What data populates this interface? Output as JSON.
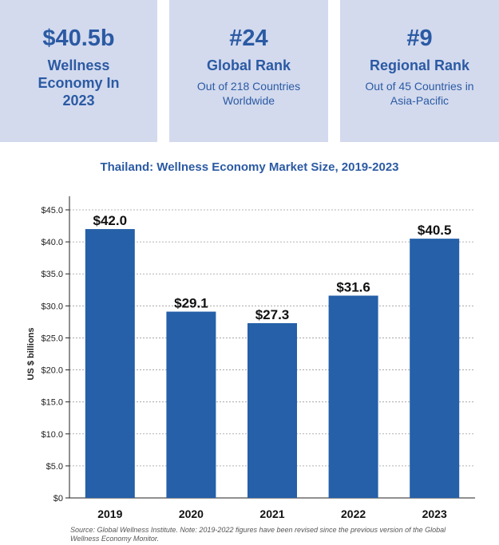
{
  "cards": [
    {
      "value": "$40.5b",
      "label": "Wellness Economy In 2023",
      "sub": ""
    },
    {
      "value": "#24",
      "label": "Global Rank",
      "sub": "Out of 218 Countries Worldwide"
    },
    {
      "value": "#9",
      "label": "Regional Rank",
      "sub": "Out of 45 Countries in Asia-Pacific"
    }
  ],
  "colors": {
    "accent": "#2b5aa3",
    "card_bg": "#d3daee",
    "bar": "#2560a8"
  },
  "chart_data": {
    "type": "bar",
    "title": "Thailand: Wellness Economy Market Size, 2019-2023",
    "xlabel": "",
    "ylabel": "US $ billions",
    "categories": [
      "2019",
      "2020",
      "2021",
      "2022",
      "2023"
    ],
    "values": [
      42.0,
      29.1,
      27.3,
      31.6,
      40.5
    ],
    "data_labels": [
      "$42.0",
      "$29.1",
      "$27.3",
      "$31.6",
      "$40.5"
    ],
    "ylim": [
      0,
      45
    ],
    "yticks": [
      0,
      5,
      10,
      15,
      20,
      25,
      30,
      35,
      40,
      45
    ],
    "ytick_labels": [
      "$0",
      "$5.0",
      "$10.0",
      "$15.0",
      "$20.0",
      "$25.0",
      "$30.0",
      "$35.0",
      "$40.0",
      "$45.0"
    ],
    "grid": true,
    "legend": "none"
  },
  "source": "Source: Global Wellness Institute. Note: 2019-2022 figures have been revised since the previous version of the Global Wellness Economy Monitor."
}
